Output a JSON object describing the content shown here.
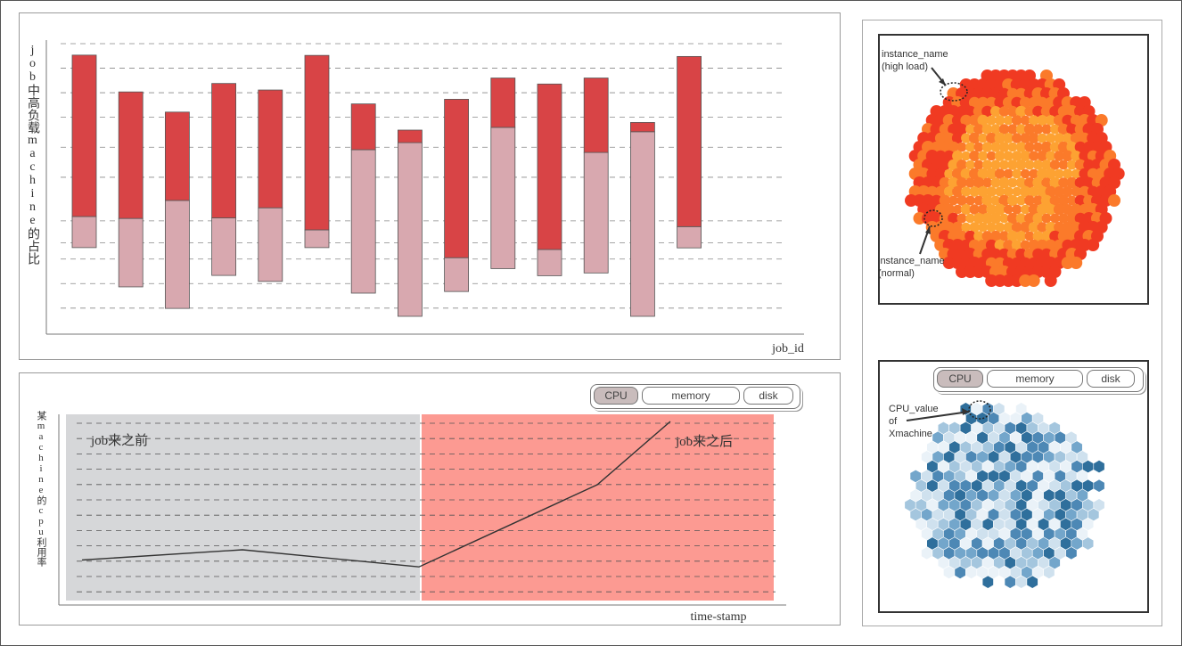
{
  "bar_panel": {
    "ylabel": "job中高负载machine的占比",
    "xlabel": "job_id"
  },
  "line_panel": {
    "ylabel": "某machine的cpu利用率",
    "xlabel": "time-stamp",
    "region_before": "job来之前",
    "region_after": "job来之后",
    "tabs": [
      "CPU",
      "memory",
      "disk"
    ],
    "active_tab": "CPU"
  },
  "bubble_panel": {
    "annotation_high": "instance_name\n(high load)",
    "annotation_high_line1": "instance_name",
    "annotation_high_line2": "(high load)",
    "annotation_normal_line1": "instance_name",
    "annotation_normal_line2": "(normal)",
    "colors": {
      "high": "#f03a22",
      "mid": "#fb7a2a",
      "low": "#fda232"
    }
  },
  "hex_panel": {
    "tabs": [
      "CPU",
      "memory",
      "disk"
    ],
    "active_tab": "CPU",
    "annotation_line1": "CPU_value",
    "annotation_line2": "of",
    "annotation_line3": "Xmachine",
    "colors": [
      "#2f6f9c",
      "#4d88b5",
      "#73a6cb",
      "#a4c6de",
      "#cfe1ee",
      "#eaf2f8"
    ]
  },
  "colors": {
    "bar_top": "#d84446",
    "bar_bottom": "#d8a8af",
    "before_region": "#d6d7d9",
    "after_region": "#fc9a92",
    "line": "#333333"
  },
  "chart_data": [
    {
      "type": "bar",
      "subtype": "stacked",
      "xlabel": "job_id",
      "ylabel": "job中高负载machine的占比",
      "categories": [
        "",
        "",
        "",
        "",
        "",
        "",
        "",
        "",
        "",
        "",
        "",
        "",
        "",
        ""
      ],
      "series": [
        {
          "values": [
            0.114,
            0.251,
            0.396,
            0.211,
            0.27,
            0.065,
            0.526,
            0.637,
            0.124,
            0.518,
            0.096,
            0.442,
            0.677,
            0.078
          ]
        },
        {
          "values": [
            0.592,
            0.464,
            0.324,
            0.493,
            0.432,
            0.64,
            0.168,
            0.046,
            0.581,
            0.181,
            0.607,
            0.273,
            0.034,
            0.624
          ]
        }
      ],
      "ylim": [
        0,
        1
      ],
      "grid": true
    },
    {
      "type": "line",
      "xlabel": "time-stamp",
      "ylabel": "某machine的cpu利用率",
      "x": [
        0,
        1,
        2,
        3,
        4
      ],
      "series": [
        {
          "values": [
            0.19,
            0.25,
            0.15,
            0.63,
            1.0
          ]
        }
      ],
      "ylim": [
        0,
        1.05
      ],
      "grid": true,
      "annotations": [
        "job来之前",
        "job来之后"
      ]
    }
  ]
}
